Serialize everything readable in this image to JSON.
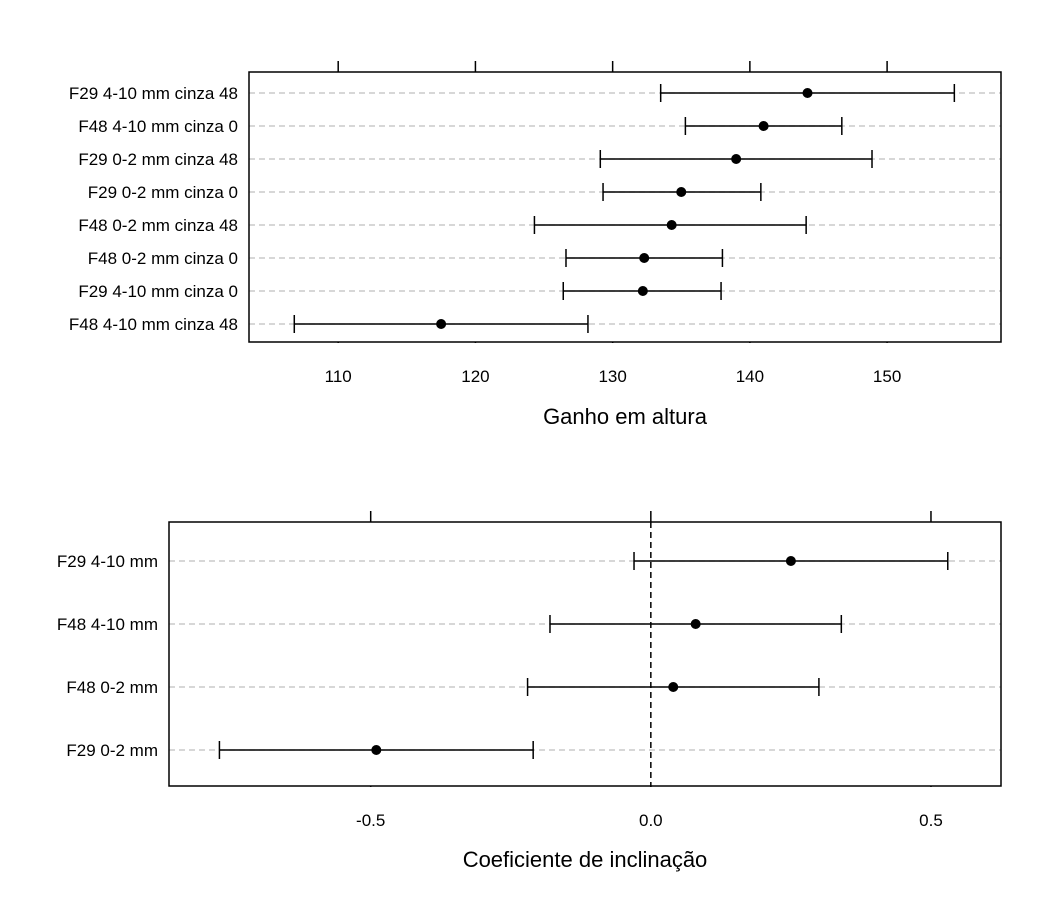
{
  "chart_data": [
    {
      "type": "dotplot",
      "title": "",
      "xlabel": "Ganho em altura",
      "ylabel": "",
      "xlim": [
        103.5,
        158.3
      ],
      "xticks": [
        110,
        120,
        130,
        140,
        150
      ],
      "xtick_labels": [
        "110",
        "120",
        "130",
        "140",
        "150"
      ],
      "grid": "horizontal dashed reference lines",
      "reference_line": null,
      "colors": {
        "points": "#000000",
        "gridlines": "#bfbfbf",
        "frame": "#000000"
      },
      "points": [
        {
          "label": "F29 4-10 mm cinza 48",
          "estimate": 144.2,
          "lower": 133.5,
          "upper": 154.9
        },
        {
          "label": "F48 4-10 mm cinza 0",
          "estimate": 141.0,
          "lower": 135.3,
          "upper": 146.7
        },
        {
          "label": "F29 0-2 mm cinza 48",
          "estimate": 139.0,
          "lower": 129.1,
          "upper": 148.9
        },
        {
          "label": "F29 0-2 mm cinza 0",
          "estimate": 135.0,
          "lower": 129.3,
          "upper": 140.8
        },
        {
          "label": "F48 0-2 mm cinza 48",
          "estimate": 134.3,
          "lower": 124.3,
          "upper": 144.1
        },
        {
          "label": "F48 0-2 mm cinza 0",
          "estimate": 132.3,
          "lower": 126.6,
          "upper": 138.0
        },
        {
          "label": "F29 4-10 mm cinza 0",
          "estimate": 132.2,
          "lower": 126.4,
          "upper": 137.9
        },
        {
          "label": "F48 4-10 mm cinza 48",
          "estimate": 117.5,
          "lower": 106.8,
          "upper": 128.2
        }
      ]
    },
    {
      "type": "dotplot",
      "title": "",
      "xlabel": "Coeficiente de inclinação",
      "ylabel": "",
      "xlim": [
        -0.86,
        0.625
      ],
      "xticks": [
        -0.5,
        0.0,
        0.5
      ],
      "xtick_labels": [
        "-0.5",
        "0.0",
        "0.5"
      ],
      "grid": "horizontal dashed reference lines",
      "reference_line": 0.0,
      "colors": {
        "points": "#000000",
        "gridlines": "#bfbfbf",
        "frame": "#000000"
      },
      "points": [
        {
          "label": "F29 4-10 mm",
          "estimate": 0.25,
          "lower": -0.03,
          "upper": 0.53
        },
        {
          "label": "F48 4-10 mm",
          "estimate": 0.08,
          "lower": -0.18,
          "upper": 0.34
        },
        {
          "label": "F48 0-2 mm",
          "estimate": 0.04,
          "lower": -0.22,
          "upper": 0.3
        },
        {
          "label": "F29 0-2 mm",
          "estimate": -0.49,
          "lower": -0.77,
          "upper": -0.21
        }
      ]
    }
  ]
}
